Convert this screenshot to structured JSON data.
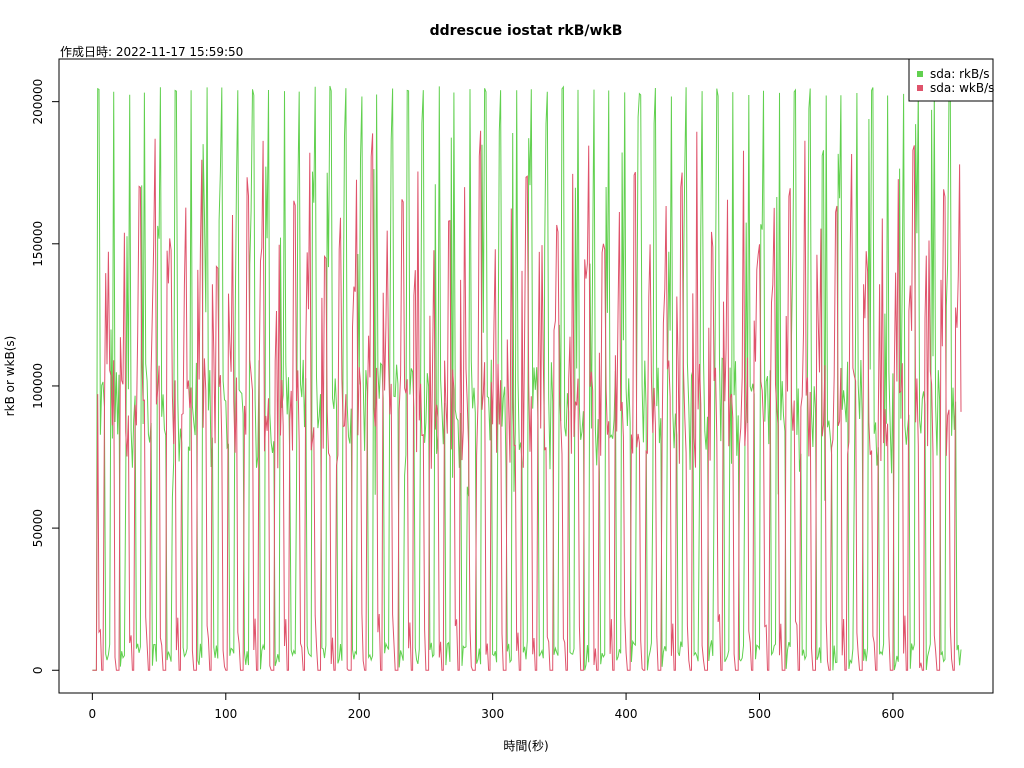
{
  "chart_data": {
    "type": "line",
    "title": "ddrescue iostat rkB/wkB",
    "subtitle": "作成日時: 2022-11-17 15:59:50",
    "xlabel": "時間(秒)",
    "ylabel": "rkB or wkB(s)",
    "xlim": [
      -25,
      675
    ],
    "ylim": [
      -8000,
      215000
    ],
    "x_ticks": [
      0,
      100,
      200,
      300,
      400,
      500,
      600
    ],
    "y_ticks": [
      0,
      50000,
      100000,
      150000,
      200000
    ],
    "legend_position": "top-right",
    "x_start": 0,
    "x_end": 651,
    "cycle_seconds": 11.6,
    "series": [
      {
        "name": "sda: rkB/s",
        "color": "#61D04F",
        "peak": 205000,
        "mid_range": [
          70000,
          110000
        ]
      },
      {
        "name": "sda: wkB/s",
        "color": "#DF536B",
        "peak_range": [
          150000,
          190000
        ],
        "mid_range": [
          75000,
          110000
        ]
      }
    ]
  }
}
